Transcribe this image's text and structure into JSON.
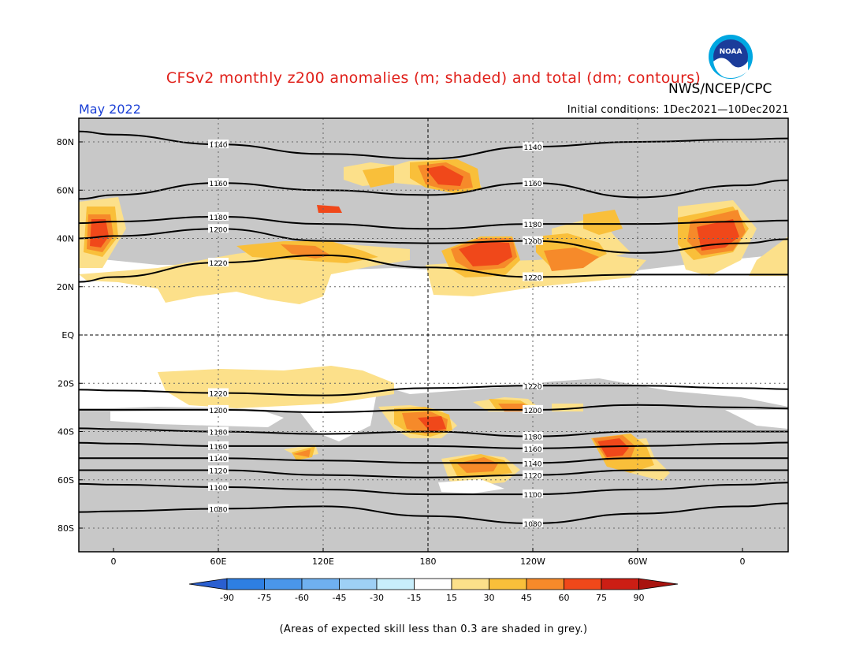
{
  "title": "CFSv2 monthly z200 anomalies (m; shaded) and total (dm; contours)",
  "organization": "NWS/NCEP/CPC",
  "period": "May 2022",
  "initial_conditions": "Initial conditions: 1Dec2021—10Dec2021",
  "footnote": "(Areas of expected skill less than 0.3 are shaded in grey.)",
  "logo_text": "NOAA",
  "axes": {
    "lat_labels": [
      "80N",
      "60N",
      "40N",
      "20N",
      "EQ",
      "20S",
      "40S",
      "60S",
      "80S"
    ],
    "lon_labels": [
      "0",
      "60E",
      "120E",
      "180",
      "120W",
      "60W",
      "0"
    ]
  },
  "contours": [
    {
      "label": "1140",
      "lat": [
        83,
        79,
        75,
        73,
        78,
        80,
        81
      ]
    },
    {
      "label": "1160",
      "lat": [
        58,
        63,
        60,
        58,
        63,
        57,
        62
      ]
    },
    {
      "label": "1180",
      "lat": [
        47,
        49,
        46,
        44,
        46,
        46,
        47
      ]
    },
    {
      "label": "1200",
      "lat": [
        41,
        44,
        39,
        38,
        39,
        34,
        38
      ]
    },
    {
      "label": "1220",
      "lat": [
        24,
        30,
        33,
        28,
        24,
        25,
        25
      ]
    },
    {
      "label": "1220",
      "lat": [
        -23,
        -24,
        -25,
        -22,
        -21,
        -21,
        -22
      ]
    },
    {
      "label": "1200",
      "lat": [
        -31,
        -31,
        -32,
        -31,
        -31,
        -29,
        -30
      ]
    },
    {
      "label": "1180",
      "lat": [
        -39,
        -40,
        -41,
        -40,
        -42,
        -40,
        -40
      ]
    },
    {
      "label": "1160",
      "lat": [
        -45,
        -46,
        -46,
        -46,
        -47,
        -46,
        -45
      ]
    },
    {
      "label": "1140",
      "lat": [
        -51,
        -51,
        -52,
        -53,
        -53,
        -51,
        -51
      ]
    },
    {
      "label": "1120",
      "lat": [
        -56,
        -56,
        -58,
        -59,
        -58,
        -56,
        -56
      ]
    },
    {
      "label": "1100",
      "lat": [
        -62,
        -63,
        -64,
        -66,
        -66,
        -64,
        -62
      ]
    },
    {
      "label": "1080",
      "lat": [
        -73,
        -72,
        -71,
        -75,
        -78,
        -74,
        -71
      ]
    }
  ],
  "colorbar": {
    "labels": [
      "-90",
      "-75",
      "-60",
      "-45",
      "-30",
      "-15",
      "15",
      "30",
      "45",
      "60",
      "75",
      "90"
    ],
    "colors": [
      "#2a5fd0",
      "#2e7fe2",
      "#4a96ea",
      "#6fb0f0",
      "#9ed0f5",
      "#c8eefb",
      "#ffffff",
      "#fce08a",
      "#f9bf3a",
      "#f68a2a",
      "#f0481a",
      "#cc1e14",
      "#a8140f"
    ]
  },
  "colors": {
    "grey_mask": "#c8c8c8",
    "title": "#e0201a",
    "period": "#1a3fd6"
  }
}
